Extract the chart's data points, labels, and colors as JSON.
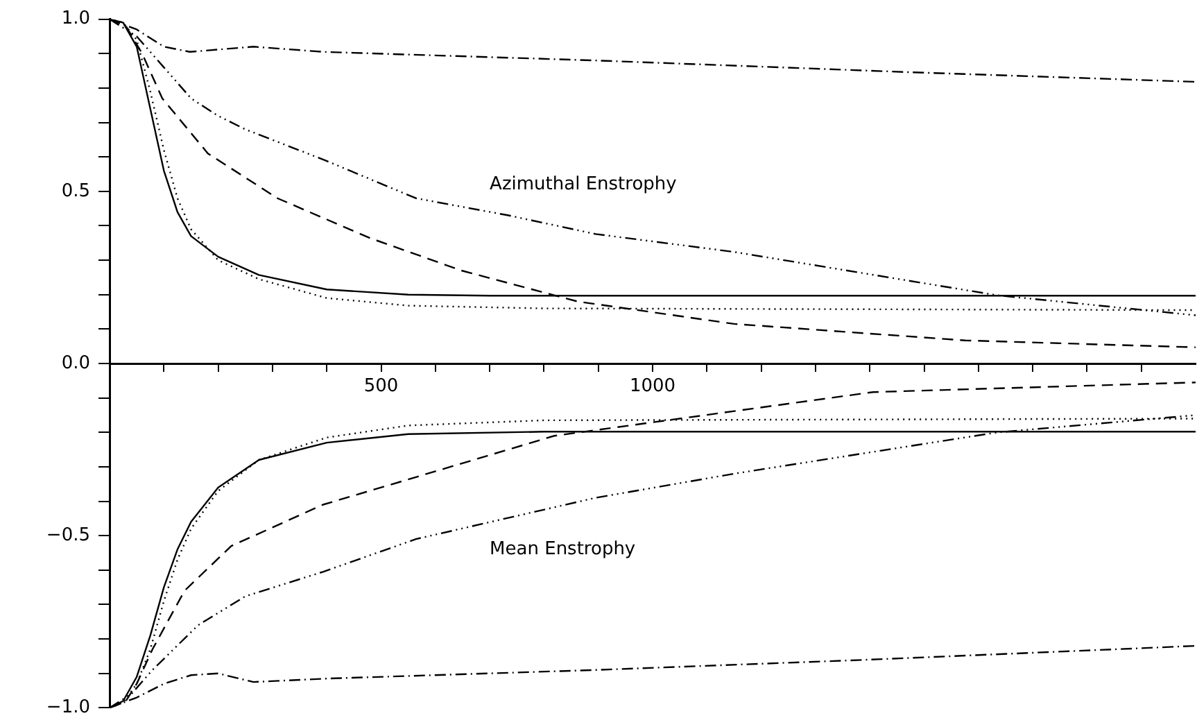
{
  "chart_data": {
    "type": "line",
    "annotations": [
      "Azimuthal Enstrophy",
      "Mean Enstrophy"
    ],
    "xlim": [
      0,
      2000
    ],
    "ylim": [
      -1,
      1
    ],
    "xticks": [
      {
        "value": 100,
        "label": null
      },
      {
        "value": 200,
        "label": null
      },
      {
        "value": 300,
        "label": null
      },
      {
        "value": 400,
        "label": null
      },
      500,
      {
        "value": 600,
        "label": null
      },
      {
        "value": 700,
        "label": null
      },
      {
        "value": 800,
        "label": null
      },
      {
        "value": 900,
        "label": null
      },
      1000,
      {
        "value": 1100,
        "label": null
      },
      {
        "value": 1200,
        "label": null
      },
      {
        "value": 1300,
        "label": null
      },
      {
        "value": 1400,
        "label": null
      },
      {
        "value": 1500,
        "label": null
      },
      {
        "value": 1600,
        "label": null
      },
      {
        "value": 1700,
        "label": null
      },
      {
        "value": 1800,
        "label": null
      },
      {
        "value": 1900,
        "label": null
      }
    ],
    "yticks": [
      {
        "value": -1,
        "label": "−1.0"
      },
      {
        "value": -0.9,
        "label": null
      },
      {
        "value": -0.8,
        "label": null
      },
      {
        "value": -0.7,
        "label": null
      },
      {
        "value": -0.6,
        "label": null
      },
      {
        "value": -0.5,
        "label": "−0.5"
      },
      {
        "value": -0.4,
        "label": null
      },
      {
        "value": -0.3,
        "label": null
      },
      {
        "value": -0.2,
        "label": null
      },
      {
        "value": -0.1,
        "label": null
      },
      {
        "value": 0,
        "label": "0.0"
      },
      {
        "value": 0.1,
        "label": null
      },
      {
        "value": 0.2,
        "label": null
      },
      {
        "value": 0.3,
        "label": null
      },
      {
        "value": 0.4,
        "label": null
      },
      {
        "value": 0.5,
        "label": "0.5"
      },
      {
        "value": 0.6,
        "label": null
      },
      {
        "value": 0.7,
        "label": null
      },
      {
        "value": 0.8,
        "label": null
      },
      {
        "value": 0.9,
        "label": null
      },
      {
        "value": 1,
        "label": "1.0"
      }
    ],
    "grid": false,
    "legend": false,
    "marker": "none",
    "series": [
      {
        "color": "#000000",
        "line_style": "solid",
        "x": [
          0,
          25,
          50,
          75,
          100,
          125,
          150,
          200,
          275,
          400,
          550,
          700,
          2000
        ],
        "values": [
          1,
          0.99,
          0.92,
          0.74,
          0.56,
          0.44,
          0.37,
          0.31,
          0.257,
          0.215,
          0.2,
          0.197,
          0.197
        ]
      },
      {
        "color": "#000000",
        "line_style": "dotted",
        "x": [
          0,
          25,
          50,
          75,
          100,
          125,
          150,
          200,
          275,
          400,
          550,
          800,
          2000
        ],
        "values": [
          1,
          0.99,
          0.94,
          0.79,
          0.62,
          0.48,
          0.39,
          0.3,
          0.245,
          0.19,
          0.168,
          0.16,
          0.155
        ]
      },
      {
        "color": "#000000",
        "line_style": "dashed",
        "x": [
          0,
          30,
          60,
          97,
          181,
          309,
          480,
          648,
          862,
          1150,
          1576,
          2000
        ],
        "values": [
          1,
          0.98,
          0.9,
          0.77,
          0.61,
          0.48,
          0.364,
          0.27,
          0.18,
          0.115,
          0.067,
          0.047
        ]
      },
      {
        "color": "#000000",
        "line_style": "dashdotdotdot",
        "x": [
          0,
          50,
          100,
          150,
          199,
          250,
          397,
          564,
          735,
          895,
          1150,
          1635,
          2000
        ],
        "values": [
          1,
          0.95,
          0.86,
          0.77,
          0.72,
          0.68,
          0.59,
          0.48,
          0.43,
          0.376,
          0.324,
          0.198,
          0.14
        ]
      },
      {
        "color": "#000000",
        "line_style": "dashdot",
        "x": [
          0,
          50,
          100,
          148,
          265,
          393,
          895,
          1490,
          2000
        ],
        "values": [
          1,
          0.97,
          0.92,
          0.905,
          0.92,
          0.905,
          0.88,
          0.845,
          0.818
        ]
      },
      {
        "color": "#000000",
        "line_style": "solid",
        "x": [
          0,
          25,
          50,
          75,
          100,
          125,
          150,
          200,
          275,
          400,
          550,
          800,
          2000
        ],
        "values": [
          -1,
          -0.98,
          -0.91,
          -0.79,
          -0.65,
          -0.54,
          -0.46,
          -0.36,
          -0.28,
          -0.23,
          -0.205,
          -0.198,
          -0.198
        ]
      },
      {
        "color": "#000000",
        "line_style": "dotted",
        "x": [
          0,
          25,
          50,
          75,
          100,
          125,
          150,
          200,
          275,
          400,
          550,
          800,
          2000
        ],
        "values": [
          -1,
          -0.985,
          -0.93,
          -0.83,
          -0.69,
          -0.57,
          -0.48,
          -0.37,
          -0.28,
          -0.215,
          -0.18,
          -0.165,
          -0.16
        ]
      },
      {
        "color": "#000000",
        "line_style": "dashed",
        "x": [
          0,
          30,
          50,
          79,
          138,
          224,
          393,
          564,
          819,
          1406,
          2000
        ],
        "values": [
          -1,
          -0.98,
          -0.93,
          -0.83,
          -0.66,
          -0.53,
          -0.41,
          -0.33,
          -0.21,
          -0.083,
          -0.055
        ]
      },
      {
        "color": "#000000",
        "line_style": "dashdotdotdot",
        "x": [
          0,
          40,
          79,
          163,
          250,
          393,
          564,
          895,
          1150,
          1635,
          2000
        ],
        "values": [
          -1,
          -0.96,
          -0.89,
          -0.76,
          -0.676,
          -0.605,
          -0.51,
          -0.39,
          -0.32,
          -0.2,
          -0.15
        ]
      },
      {
        "color": "#000000",
        "line_style": "dashdot",
        "x": [
          0,
          50,
          100,
          150,
          200,
          265,
          400,
          895,
          1400,
          2000
        ],
        "values": [
          -1,
          -0.97,
          -0.93,
          -0.905,
          -0.9,
          -0.925,
          -0.915,
          -0.89,
          -0.86,
          -0.82
        ]
      }
    ]
  }
}
